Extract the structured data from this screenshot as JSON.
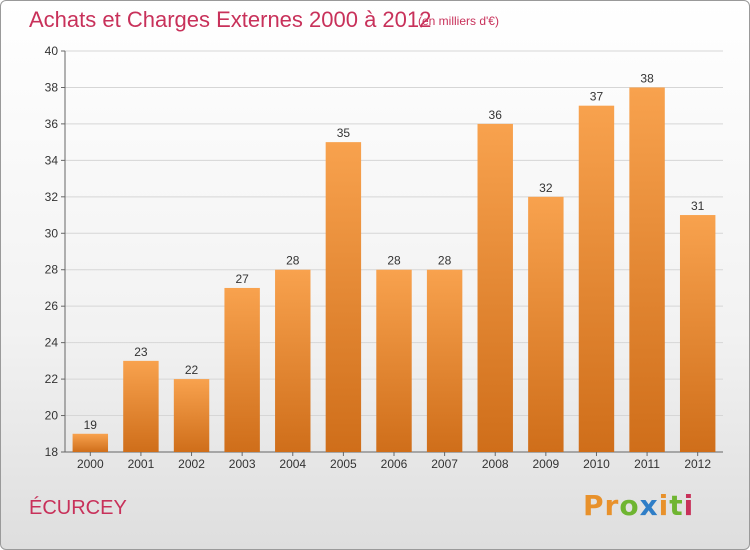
{
  "chart_data": {
    "type": "bar",
    "title": "Achats et Charges Externes 2000 à 2012",
    "subtitle": "(en milliers d'€)",
    "categories": [
      "2000",
      "2001",
      "2002",
      "2003",
      "2004",
      "2005",
      "2006",
      "2007",
      "2008",
      "2009",
      "2010",
      "2011",
      "2012"
    ],
    "values": [
      19,
      23,
      22,
      27,
      28,
      35,
      28,
      28,
      36,
      32,
      37,
      38,
      31
    ],
    "ylim": [
      18,
      40
    ],
    "yticks": [
      18,
      20,
      22,
      24,
      26,
      28,
      30,
      32,
      34,
      36,
      38,
      40
    ],
    "grid": true,
    "bar_color_top": "#f8a24e",
    "bar_color_bottom": "#cf6e1a"
  },
  "commune": "ÉCURCEY",
  "logo": {
    "letters": [
      "P",
      "r",
      "o",
      "x",
      "i",
      "t",
      "i"
    ],
    "colors": [
      "#e8912b",
      "#e8912b",
      "#6fb531",
      "#2f7ec7",
      "#e8912b",
      "#6fb531",
      "#c8315a"
    ]
  }
}
